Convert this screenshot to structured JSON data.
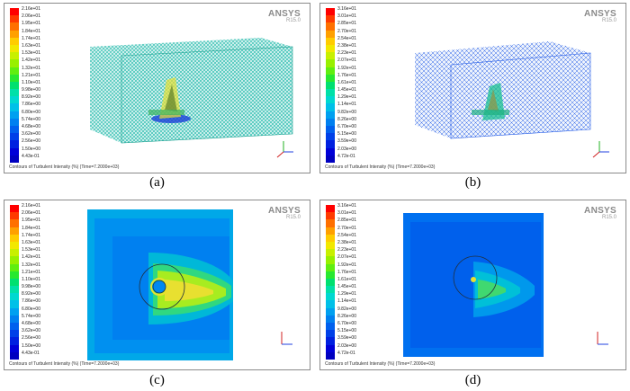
{
  "logo": {
    "name": "ANSYS",
    "release": "R15.0"
  },
  "panels": {
    "a": {
      "caption": "(a)",
      "footer": "Contours of Turbulent Intensity (%)  (Time=7.2000e+03)",
      "legend": [
        "2.16e+01",
        "2.06e+01",
        "1.95e+01",
        "1.84e+01",
        "1.74e+01",
        "1.63e+01",
        "1.53e+01",
        "1.42e+01",
        "1.32e+01",
        "1.21e+01",
        "1.10e+01",
        "9.98e+00",
        "8.92e+00",
        "7.86e+00",
        "6.80e+00",
        "5.74e+00",
        "4.68e+00",
        "3.62e+00",
        "2.56e+00",
        "1.50e+00",
        "4.43e-01"
      ]
    },
    "b": {
      "caption": "(b)",
      "footer": "Contours of Turbulent Intensity (%)  (Time=7.2000e+03)",
      "legend": [
        "3.16e+01",
        "3.01e+01",
        "2.85e+01",
        "2.70e+01",
        "2.54e+01",
        "2.38e+01",
        "2.23e+01",
        "2.07e+01",
        "1.92e+01",
        "1.76e+01",
        "1.61e+01",
        "1.45e+01",
        "1.29e+01",
        "1.14e+01",
        "9.82e+00",
        "8.26e+00",
        "6.70e+00",
        "5.15e+00",
        "3.59e+00",
        "2.03e+00",
        "4.72e-01"
      ]
    },
    "c": {
      "caption": "(c)",
      "footer": "Contours of Turbulent Intensity (%)  (Time=7.2000e+03)",
      "legend": [
        "2.16e+01",
        "2.06e+01",
        "1.95e+01",
        "1.84e+01",
        "1.74e+01",
        "1.63e+01",
        "1.53e+01",
        "1.42e+01",
        "1.32e+01",
        "1.21e+01",
        "1.10e+01",
        "9.98e+00",
        "8.92e+00",
        "7.86e+00",
        "6.80e+00",
        "5.74e+00",
        "4.68e+00",
        "3.62e+00",
        "2.56e+00",
        "1.50e+00",
        "4.43e-01"
      ]
    },
    "d": {
      "caption": "(d)",
      "footer": "Contours of Turbulent Intensity (%)  (Time=7.2000e+03)",
      "legend": [
        "3.16e+01",
        "3.01e+01",
        "2.85e+01",
        "2.70e+01",
        "2.54e+01",
        "2.38e+01",
        "2.23e+01",
        "2.07e+01",
        "1.92e+01",
        "1.76e+01",
        "1.61e+01",
        "1.45e+01",
        "1.29e+01",
        "1.14e+01",
        "9.82e+00",
        "8.26e+00",
        "6.70e+00",
        "5.15e+00",
        "3.59e+00",
        "2.03e+00",
        "4.72e-01"
      ]
    }
  },
  "colors": {
    "legend_scale": [
      "#ff0000",
      "#ff3a00",
      "#ff7000",
      "#ffa000",
      "#ffcc00",
      "#f2e800",
      "#c8f000",
      "#98f000",
      "#60ee10",
      "#28e830",
      "#00e070",
      "#00e0a8",
      "#00d8d0",
      "#00c0e8",
      "#00a0f0",
      "#0080f0",
      "#0060ee",
      "#0040e8",
      "#0020e0",
      "#0000d8",
      "#0000c0"
    ]
  }
}
